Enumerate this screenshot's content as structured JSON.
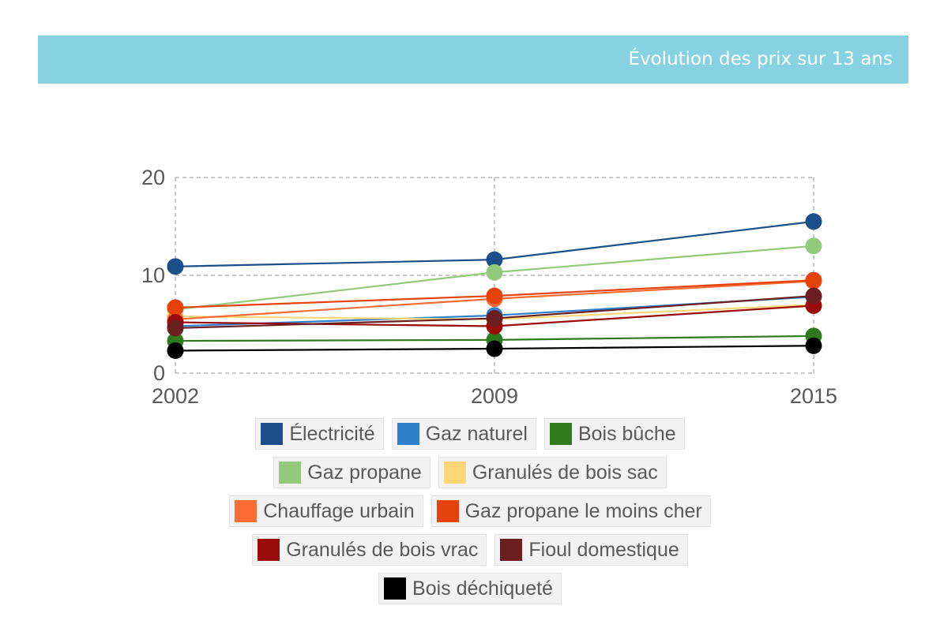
{
  "header": {
    "title": "Évolution des prix sur 13 ans"
  },
  "chart_data": {
    "type": "line",
    "title": "",
    "xlabel": "",
    "ylabel": "",
    "x": [
      "2002",
      "2009",
      "2015"
    ],
    "ylim": [
      0,
      20
    ],
    "yticks": [
      "0",
      "10",
      "20"
    ],
    "grid": true,
    "legend_placement": "bottom",
    "series": [
      {
        "name": "Électricité",
        "color": "#1a4f8a",
        "values": [
          10.9,
          11.6,
          15.5
        ]
      },
      {
        "name": "Gaz naturel",
        "color": "#2f7fcb",
        "values": [
          4.8,
          5.9,
          7.8
        ]
      },
      {
        "name": "Bois bûche",
        "color": "#2f7a1f",
        "values": [
          3.3,
          3.4,
          3.8
        ]
      },
      {
        "name": "Gaz propane",
        "color": "#92c97a",
        "values": [
          6.5,
          10.3,
          13.0
        ]
      },
      {
        "name": "Granulés de bois sac",
        "color": "#fcd77a",
        "values": [
          5.8,
          5.5,
          7.0
        ]
      },
      {
        "name": "Chauffage urbain",
        "color": "#fb6c34",
        "values": [
          5.5,
          7.6,
          9.4
        ]
      },
      {
        "name": "Gaz propane le moins cher",
        "color": "#e5420c",
        "values": [
          6.7,
          7.9,
          9.5
        ]
      },
      {
        "name": "Granulés de bois vrac",
        "color": "#9c0b0b",
        "values": [
          5.2,
          4.8,
          6.9
        ]
      },
      {
        "name": "Fioul domestique",
        "color": "#6b1f1f",
        "values": [
          4.6,
          5.6,
          7.9
        ]
      },
      {
        "name": "Bois déchiqueté",
        "color": "#000000",
        "values": [
          2.3,
          2.5,
          2.8
        ]
      }
    ]
  }
}
